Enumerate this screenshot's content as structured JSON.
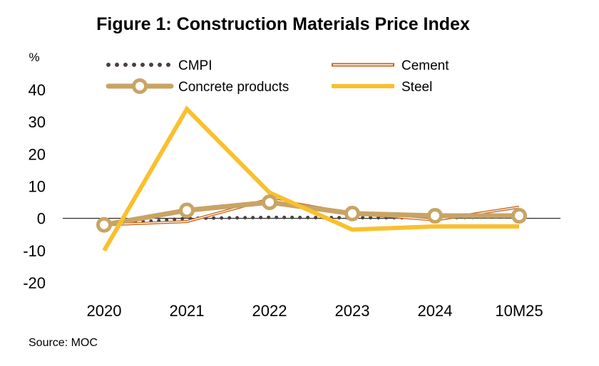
{
  "chart_data": {
    "type": "line",
    "title": "Figure 1: Construction Materials Price Index",
    "ylabel": "%",
    "xlabel": "",
    "categories": [
      "2020",
      "2021",
      "2022",
      "2023",
      "2024",
      "10M25"
    ],
    "ylim": [
      -20,
      40
    ],
    "yticks": [
      "40",
      "30",
      "20",
      "10",
      "0",
      "-10",
      "-20"
    ],
    "ytick_values": [
      40,
      30,
      20,
      10,
      0,
      -10,
      -20
    ],
    "legend_position": "top",
    "series": [
      {
        "name": "CMPI",
        "values": [
          -2.0,
          0.0,
          0.3,
          0.2,
          0.2,
          0.5
        ],
        "color": "#4a4040",
        "style": "dotted"
      },
      {
        "name": "Cement",
        "values": [
          -2.0,
          -1.0,
          6.0,
          1.5,
          -0.5,
          3.5
        ],
        "color": "#c8651b",
        "style": "double"
      },
      {
        "name": "Concrete products",
        "values": [
          -2.0,
          2.5,
          5.0,
          1.5,
          0.8,
          0.8
        ],
        "color": "#c8a464",
        "style": "marker"
      },
      {
        "name": "Steel",
        "values": [
          -10.0,
          34.0,
          8.0,
          -3.5,
          -2.5,
          -2.5
        ],
        "color": "#f9c02d",
        "style": "solid"
      }
    ],
    "source": "Source: MOC"
  }
}
